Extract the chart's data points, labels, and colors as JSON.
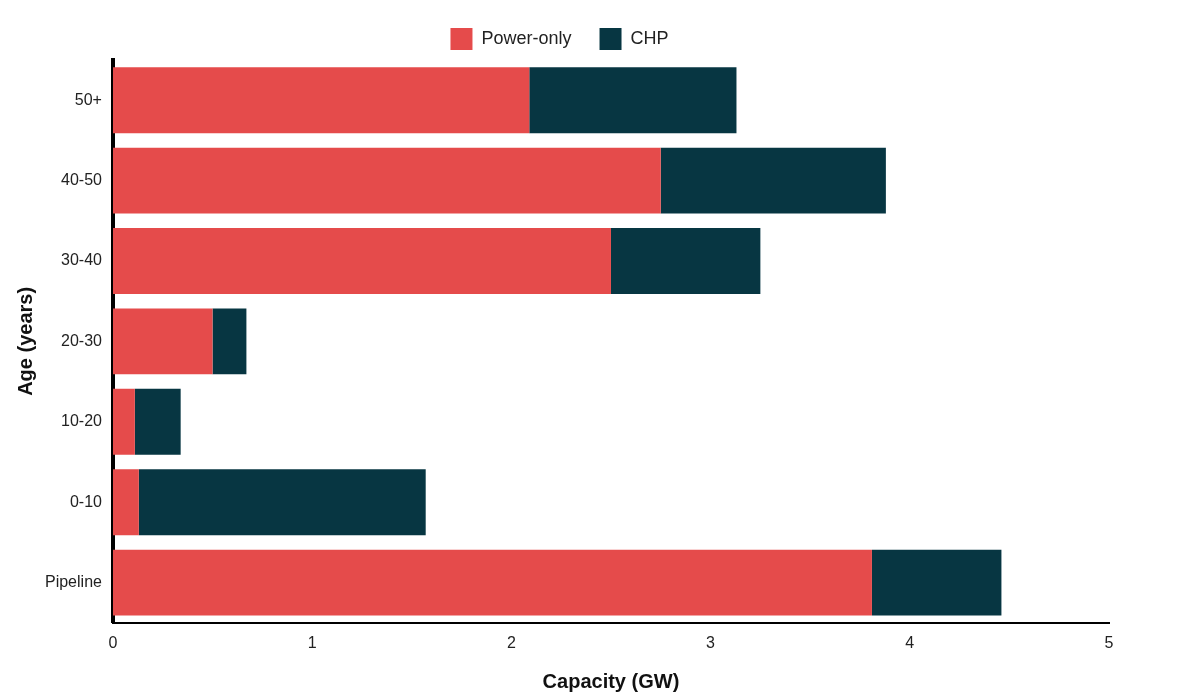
{
  "chart_data": {
    "type": "bar",
    "orientation": "horizontal",
    "stacked": true,
    "xlabel": "Capacity (GW)",
    "ylabel": "Age (years)",
    "categories": [
      "50+",
      "40-50",
      "30-40",
      "20-30",
      "10-20",
      "0-10",
      "Pipeline"
    ],
    "series": [
      {
        "name": "Power-only",
        "color": "#e54b4b",
        "values": [
          2.09,
          2.75,
          2.5,
          0.5,
          0.11,
          0.13,
          3.81
        ]
      },
      {
        "name": "CHP",
        "color": "#073642",
        "values": [
          1.04,
          1.13,
          0.75,
          0.17,
          0.23,
          1.44,
          0.65
        ]
      }
    ],
    "xlim": [
      0,
      5
    ],
    "xticks": [
      0,
      1,
      2,
      3,
      4,
      5
    ],
    "legend": "top",
    "grid": false
  }
}
